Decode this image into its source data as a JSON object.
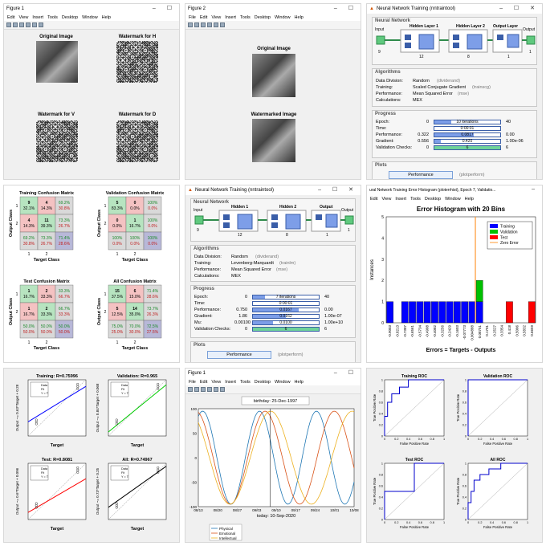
{
  "fig1": {
    "title": "Figure 1",
    "menus": [
      "Edit",
      "View",
      "Insert",
      "Tools",
      "Desktop",
      "Window",
      "Help"
    ],
    "captions": [
      "Original Image",
      "Watermark for H",
      "Watermark for V",
      "Watermark for D"
    ]
  },
  "fig2": {
    "title": "Figure 2",
    "menus": [
      "File",
      "Edit",
      "View",
      "Insert",
      "Tools",
      "Desktop",
      "Window",
      "Help"
    ],
    "captions": [
      "Original Image",
      "Watermarked Image"
    ]
  },
  "nnt1": {
    "title": "Neural Network Training (nntraintool)",
    "network_label": "Neural Network",
    "input_label": "Input",
    "output_label": "Output",
    "layers": [
      {
        "name": "Hidden Layer 1",
        "size": "12"
      },
      {
        "name": "Hidden Layer 2",
        "size": "8"
      },
      {
        "name": "Output Layer",
        "size": "1"
      }
    ],
    "in_size": "9",
    "out_size": "1",
    "algorithms_label": "Algorithms",
    "algorithms": [
      {
        "k": "Data Division:",
        "v": "Random",
        "n": "(dividerand)"
      },
      {
        "k": "Training:",
        "v": "Scaled Conjugate Gradient",
        "n": "(trainscg)"
      },
      {
        "k": "Performance:",
        "v": "Mean Squared Error",
        "n": "(mse)"
      },
      {
        "k": "Calculations:",
        "v": "MEX",
        "n": ""
      }
    ],
    "progress_label": "Progress",
    "progress": [
      {
        "k": "Epoch:",
        "start": "0",
        "bar": "10 iterations",
        "end": "40",
        "fill": 0.25
      },
      {
        "k": "Time:",
        "start": "",
        "bar": "0:00:01",
        "end": "",
        "fill": 0
      },
      {
        "k": "Performance:",
        "start": "0.322",
        "bar": "0.0817",
        "end": "0.00",
        "fill": 0.6
      },
      {
        "k": "Gradient:",
        "start": "0.556",
        "bar": "0.420",
        "end": "1.00e-06",
        "fill": 0.1
      },
      {
        "k": "Validation Checks:",
        "start": "0",
        "bar": "6",
        "end": "6",
        "fill": 1
      }
    ],
    "plots_label": "Plots",
    "plot_button": "Performance",
    "plot_button_fn": "(plotperform)"
  },
  "conf": {
    "titles": [
      "Training Confusion Matrix",
      "Validation Confusion Matrix",
      "Test Confusion Matrix",
      "All Confusion Matrix"
    ],
    "ylabel": "Output Class",
    "xlabel": "Target Class",
    "cells": [
      [
        [
          "9",
          "32.1%"
        ],
        [
          "4",
          "14.3%"
        ],
        [
          "69.2%",
          "30.8%"
        ],
        [
          "4",
          "14.3%"
        ],
        [
          "11",
          "39.3%"
        ],
        [
          "73.3%",
          "26.7%"
        ],
        [
          "69.2%",
          "30.8%"
        ],
        [
          "73.3%",
          "26.7%"
        ],
        [
          "71.4%",
          "28.6%"
        ]
      ],
      [
        [
          "5",
          "83.3%"
        ],
        [
          "0",
          "0.0%"
        ],
        [
          "100%",
          "0.0%"
        ],
        [
          "0",
          "0.0%"
        ],
        [
          "1",
          "16.7%"
        ],
        [
          "100%",
          "0.0%"
        ],
        [
          "100%",
          "0.0%"
        ],
        [
          "100%",
          "0.0%"
        ],
        [
          "100%",
          "0.0%"
        ]
      ],
      [
        [
          "1",
          "16.7%"
        ],
        [
          "2",
          "33.3%"
        ],
        [
          "33.3%",
          "66.7%"
        ],
        [
          "1",
          "16.7%"
        ],
        [
          "2",
          "33.3%"
        ],
        [
          "66.7%",
          "33.3%"
        ],
        [
          "50.0%",
          "50.0%"
        ],
        [
          "50.0%",
          "50.0%"
        ],
        [
          "50.0%",
          "50.0%"
        ]
      ],
      [
        [
          "15",
          "37.5%"
        ],
        [
          "6",
          "15.0%"
        ],
        [
          "71.4%",
          "28.6%"
        ],
        [
          "5",
          "12.5%"
        ],
        [
          "14",
          "35.0%"
        ],
        [
          "73.7%",
          "26.3%"
        ],
        [
          "75.0%",
          "25.0%"
        ],
        [
          "70.0%",
          "30.0%"
        ],
        [
          "72.5%",
          "27.5%"
        ]
      ]
    ],
    "tick_labels": [
      "1",
      "2"
    ]
  },
  "nnt2": {
    "title": "Neural Network Training (nntraintool)",
    "network_label": "Neural Network",
    "input_label": "Input",
    "output_label": "Output",
    "layers": [
      {
        "name": "Hidden 1",
        "size": "12"
      },
      {
        "name": "Hidden 2",
        "size": "8"
      },
      {
        "name": "Output",
        "size": "1"
      }
    ],
    "in_size": "9",
    "out_size": "1",
    "algorithms_label": "Algorithms",
    "algorithms": [
      {
        "k": "Data Division:",
        "v": "Random",
        "n": "(dividerand)"
      },
      {
        "k": "Training:",
        "v": "Levenberg-Marquardt",
        "n": "(trainlm)"
      },
      {
        "k": "Performance:",
        "v": "Mean Squared Error",
        "n": "(mse)"
      },
      {
        "k": "Calculations:",
        "v": "MEX",
        "n": ""
      }
    ],
    "progress_label": "Progress",
    "progress": [
      {
        "k": "Epoch:",
        "start": "0",
        "bar": "7 iterations",
        "end": "40",
        "fill": 0.18
      },
      {
        "k": "Time:",
        "start": "",
        "bar": "0:00:01",
        "end": "",
        "fill": 0
      },
      {
        "k": "Performance:",
        "start": "0.750",
        "bar": "0.0167",
        "end": "0.00",
        "fill": 0.7
      },
      {
        "k": "Gradient:",
        "start": "1.86",
        "bar": "0.0162",
        "end": "1.00e-07",
        "fill": 0.5
      },
      {
        "k": "Mu:",
        "start": "0.00100",
        "bar": "0.0100",
        "end": "1.00e+10",
        "fill": 0.3
      },
      {
        "k": "Validation Checks:",
        "start": "0",
        "bar": "6",
        "end": "6",
        "fill": 1
      }
    ],
    "plots_label": "Plots",
    "plot_button": "Performance",
    "plot_button_fn": "(plotperform)"
  },
  "hist": {
    "window_title": "ural Network Training Error Histogram (ploterrhist), Epoch 7, Validatio...",
    "menus": [
      "Edit",
      "View",
      "Insert",
      "Tools",
      "Desktop",
      "Window",
      "Help"
    ]
  },
  "hist_chart": {
    "type": "bar",
    "title": "Error Histogram with 20 Bins",
    "xlabel": "Errors = Targets - Outputs",
    "ylabel": "Instances",
    "ylim": [
      0,
      5
    ],
    "yticks": [
      "0",
      "1",
      "2",
      "3",
      "4",
      "5"
    ],
    "categories": [
      "-0.9003",
      "-0.8213",
      "-0.7387",
      "-0.6561",
      "-0.5734",
      "-0.4908",
      "-0.4082",
      "-0.3256",
      "-0.2429",
      "-0.1603",
      "-0.07773",
      "0.004888",
      "0.08751",
      "0.1701",
      "0.2527",
      "0.3354",
      "0.418",
      "0.5006",
      "0.5832",
      "0.6659"
    ],
    "series": [
      {
        "name": "Training",
        "color": "#0000ff",
        "values": [
          1,
          0,
          1,
          1,
          1,
          1,
          1,
          1,
          1,
          1,
          1,
          1,
          1,
          0,
          0,
          0,
          0,
          0,
          0,
          0
        ]
      },
      {
        "name": "Validation",
        "color": "#00c000",
        "values": [
          0,
          0,
          0,
          0,
          0,
          0,
          0,
          0,
          0,
          0,
          0,
          0,
          1,
          0,
          0,
          0,
          0,
          0,
          0,
          0
        ]
      },
      {
        "name": "Test",
        "color": "#ff0000",
        "values": [
          0,
          0,
          0,
          0,
          0,
          0,
          0,
          0,
          0,
          0,
          0,
          0,
          0,
          0,
          0,
          0,
          1,
          0,
          0,
          1
        ]
      }
    ],
    "zero_error_label": "Zero Error",
    "zero_error_color": "#ff9933",
    "legend": "top-right"
  },
  "regression": {
    "titles": [
      "Training: R=0.75996",
      "Validation: R=0.965",
      "Test: R=0.8081",
      "All: R=0.74967"
    ],
    "ylabels": [
      "Output ~= 0.63*Target + 0.28",
      "Output ~= 0.84*Target + 0.068",
      "Output ~= 0.6*Target + 0.096",
      "Output ~= 0.73*Target + 0.25"
    ],
    "xlabel": "Target",
    "legend": [
      "Data",
      "Fit",
      "Y = T"
    ],
    "colors": [
      "#0000ff",
      "#00cc00",
      "#ff0000",
      "#000000"
    ]
  },
  "bio": {
    "title": "Figure 1",
    "menus": [
      "File",
      "Edit",
      "View",
      "Insert",
      "Tools",
      "Desktop",
      "Window",
      "Help"
    ],
    "birthday": "birthday: 25-Dec-1997",
    "xlabel": "today: 10-Sep-2020",
    "xticks": [
      "08/13",
      "08/20",
      "08/27",
      "09/03",
      "09/10",
      "09/17",
      "09/24",
      "10/01",
      "10/08"
    ],
    "yticks": [
      "100",
      "50",
      "0",
      "-50",
      "-100"
    ],
    "legend": [
      {
        "name": "Physical",
        "color": "#1f77b4"
      },
      {
        "name": "Emotional",
        "color": "#d95319"
      },
      {
        "name": "Intellectual",
        "color": "#edb120"
      }
    ]
  },
  "roc": {
    "titles": [
      "Training ROC",
      "Validation ROC",
      "Test ROC",
      "All ROC"
    ],
    "xlabel": "False Positive Rate",
    "ylabel": "True Positive Rate",
    "xticks": [
      "0",
      "0.2",
      "0.4",
      "0.6",
      "0.8",
      "1"
    ],
    "yticks": [
      "0",
      "0.2",
      "0.4",
      "0.6",
      "0.8",
      "1"
    ]
  }
}
